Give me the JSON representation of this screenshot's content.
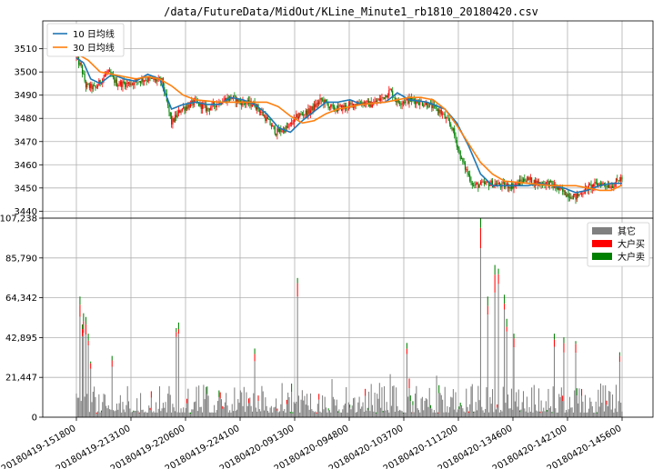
{
  "chart_data": [
    {
      "type": "candlestick",
      "title": "/data/FutureData/MidOut/KLine_Minute1_rb1810_20180420.csv",
      "ylim": [
        3437,
        3522
      ],
      "y_ticks": [
        3440,
        3450,
        3460,
        3470,
        3480,
        3490,
        3500,
        3510
      ],
      "grid": true,
      "legend_position": "upper-left",
      "ma_series": [
        {
          "name": "10 日均线",
          "color": "#1f77b4",
          "keypoints": [
            [
              0,
              3506
            ],
            [
              6,
              3504
            ],
            [
              12,
              3497
            ],
            [
              20,
              3495
            ],
            [
              30,
              3499
            ],
            [
              40,
              3497
            ],
            [
              50,
              3496
            ],
            [
              60,
              3499
            ],
            [
              70,
              3497
            ],
            [
              80,
              3484
            ],
            [
              90,
              3486
            ],
            [
              100,
              3487
            ],
            [
              110,
              3486
            ],
            [
              120,
              3486
            ],
            [
              130,
              3489
            ],
            [
              140,
              3488
            ],
            [
              150,
              3486
            ],
            [
              160,
              3482
            ],
            [
              170,
              3476
            ],
            [
              180,
              3474
            ],
            [
              190,
              3479
            ],
            [
              200,
              3483
            ],
            [
              210,
              3487
            ],
            [
              220,
              3487
            ],
            [
              230,
              3488
            ],
            [
              240,
              3486
            ],
            [
              260,
              3487
            ],
            [
              270,
              3491
            ],
            [
              280,
              3488
            ],
            [
              295,
              3487
            ],
            [
              310,
              3484
            ],
            [
              320,
              3478
            ],
            [
              330,
              3468
            ],
            [
              340,
              3456
            ],
            [
              350,
              3451
            ],
            [
              360,
              3451
            ],
            [
              380,
              3451
            ],
            [
              390,
              3452
            ],
            [
              400,
              3451
            ],
            [
              410,
              3450
            ],
            [
              420,
              3448
            ],
            [
              430,
              3449
            ],
            [
              440,
              3451
            ],
            [
              450,
              3452
            ],
            [
              458,
              3452
            ]
          ]
        },
        {
          "name": "30 日均线",
          "color": "#ff7f0e",
          "keypoints": [
            [
              0,
              3508
            ],
            [
              10,
              3505
            ],
            [
              20,
              3500
            ],
            [
              30,
              3499
            ],
            [
              40,
              3498
            ],
            [
              50,
              3497
            ],
            [
              60,
              3498
            ],
            [
              70,
              3497
            ],
            [
              80,
              3494
            ],
            [
              90,
              3490
            ],
            [
              100,
              3488
            ],
            [
              120,
              3487
            ],
            [
              140,
              3487
            ],
            [
              160,
              3487
            ],
            [
              170,
              3485
            ],
            [
              180,
              3481
            ],
            [
              190,
              3478
            ],
            [
              200,
              3479
            ],
            [
              210,
              3482
            ],
            [
              220,
              3484
            ],
            [
              240,
              3486
            ],
            [
              260,
              3487
            ],
            [
              270,
              3488
            ],
            [
              280,
              3489
            ],
            [
              290,
              3489
            ],
            [
              300,
              3488
            ],
            [
              310,
              3484
            ],
            [
              320,
              3477
            ],
            [
              330,
              3469
            ],
            [
              340,
              3461
            ],
            [
              350,
              3456
            ],
            [
              360,
              3453
            ],
            [
              380,
              3452
            ],
            [
              400,
              3451
            ],
            [
              420,
              3451
            ],
            [
              430,
              3450
            ],
            [
              440,
              3449
            ],
            [
              450,
              3449
            ],
            [
              458,
              3451
            ]
          ]
        }
      ],
      "price_path": [
        [
          0,
          3506
        ],
        [
          4,
          3502
        ],
        [
          8,
          3494
        ],
        [
          16,
          3493
        ],
        [
          26,
          3500
        ],
        [
          34,
          3495
        ],
        [
          44,
          3495
        ],
        [
          58,
          3497
        ],
        [
          72,
          3496
        ],
        [
          80,
          3478
        ],
        [
          88,
          3484
        ],
        [
          100,
          3487
        ],
        [
          110,
          3484
        ],
        [
          120,
          3487
        ],
        [
          130,
          3489
        ],
        [
          138,
          3487
        ],
        [
          150,
          3486
        ],
        [
          158,
          3481
        ],
        [
          168,
          3474
        ],
        [
          178,
          3476
        ],
        [
          186,
          3481
        ],
        [
          196,
          3483
        ],
        [
          206,
          3488
        ],
        [
          216,
          3484
        ],
        [
          228,
          3485
        ],
        [
          238,
          3487
        ],
        [
          248,
          3486
        ],
        [
          258,
          3489
        ],
        [
          264,
          3492
        ],
        [
          270,
          3487
        ],
        [
          282,
          3488
        ],
        [
          296,
          3486
        ],
        [
          306,
          3483
        ],
        [
          316,
          3476
        ],
        [
          324,
          3462
        ],
        [
          334,
          3451
        ],
        [
          348,
          3452
        ],
        [
          360,
          3451
        ],
        [
          368,
          3451
        ],
        [
          378,
          3454
        ],
        [
          388,
          3452
        ],
        [
          398,
          3452
        ],
        [
          410,
          3448
        ],
        [
          420,
          3446
        ],
        [
          430,
          3450
        ],
        [
          440,
          3452
        ],
        [
          450,
          3451
        ],
        [
          458,
          3454
        ]
      ],
      "n_candles": 460,
      "candle_colors": {
        "up": "#ff0000",
        "down": "#008000"
      }
    },
    {
      "type": "stacked_bar",
      "ylim": [
        0,
        107238
      ],
      "y_ticks": [
        0,
        21447,
        42895,
        64342,
        85790,
        107238
      ],
      "y_tick_labels": [
        "0",
        "21,447",
        "42,895",
        "64,342",
        "85,790",
        "107,238"
      ],
      "grid": true,
      "legend_position": "upper-right",
      "series": [
        {
          "name": "其它",
          "color": "#808080"
        },
        {
          "name": "大户买",
          "color": "#ff0000"
        },
        {
          "name": "大户卖",
          "color": "#008000"
        }
      ],
      "peaks": [
        [
          3,
          65000
        ],
        [
          5,
          50000
        ],
        [
          6,
          56000
        ],
        [
          8,
          54000
        ],
        [
          10,
          45000
        ],
        [
          12,
          30000
        ],
        [
          30,
          33000
        ],
        [
          84,
          48000
        ],
        [
          86,
          51000
        ],
        [
          150,
          37000
        ],
        [
          186,
          75000
        ],
        [
          278,
          40000
        ],
        [
          340,
          107238
        ],
        [
          346,
          65000
        ],
        [
          352,
          82000
        ],
        [
          355,
          80000
        ],
        [
          360,
          66000
        ],
        [
          362,
          53000
        ],
        [
          368,
          45000
        ],
        [
          402,
          45000
        ],
        [
          410,
          43000
        ],
        [
          420,
          41000
        ],
        [
          457,
          35000
        ]
      ],
      "x_tick_labels": [
        "20180419-151800",
        "20180419-213100",
        "20180419-220600",
        "20180419-224100",
        "20180420-091300",
        "20180420-094800",
        "20180420-103700",
        "20180420-111200",
        "20180420-134600",
        "20180420-142100",
        "20180420-145600"
      ]
    }
  ]
}
